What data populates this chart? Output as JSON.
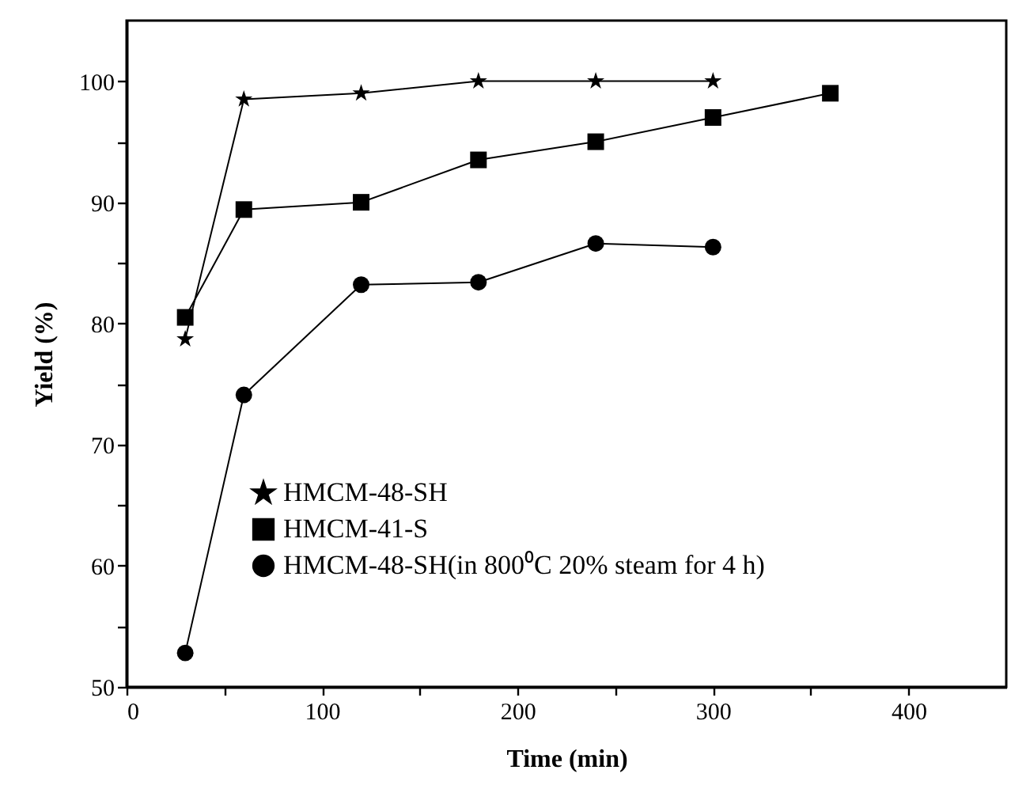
{
  "chart_data": {
    "type": "line",
    "xlabel": "Time (min)",
    "ylabel": "Yield (%)",
    "xlim": [
      0,
      450
    ],
    "ylim": [
      50,
      105
    ],
    "xticks": [
      0,
      {
        "value": 50,
        "label": null
      },
      100,
      {
        "value": 150,
        "label": null
      },
      200,
      {
        "value": 250,
        "label": null
      },
      300,
      {
        "value": 350,
        "label": null
      },
      400
    ],
    "yticks": [
      50,
      {
        "value": 55,
        "label": null
      },
      60,
      {
        "value": 65,
        "label": null
      },
      70,
      {
        "value": 75,
        "label": null
      },
      80,
      {
        "value": 85,
        "label": null
      },
      90,
      {
        "value": 95,
        "label": null
      },
      100
    ],
    "grid": false,
    "legend": "bottom left",
    "line_style": "solid",
    "series": [
      {
        "name": "HMCM-48-SH",
        "color": "#000000",
        "marker": "star",
        "x": [
          30,
          60,
          120,
          180,
          240,
          300
        ],
        "values": [
          78.7,
          98.5,
          99.0,
          100,
          100,
          100
        ]
      },
      {
        "name": "HMCM-41-S",
        "color": "#000000",
        "marker": "square",
        "x": [
          30,
          60,
          120,
          180,
          240,
          300,
          360
        ],
        "values": [
          80.5,
          89.4,
          90.0,
          93.5,
          95.0,
          97.0,
          99.0
        ]
      },
      {
        "name": "HMCM-48-SH(in 800⁰C 20% steam for 4 h)",
        "color": "#000000",
        "marker": "circle",
        "x": [
          30,
          60,
          120,
          180,
          240,
          300
        ],
        "values": [
          52.8,
          74.1,
          83.2,
          83.4,
          86.6,
          86.3
        ]
      }
    ]
  }
}
